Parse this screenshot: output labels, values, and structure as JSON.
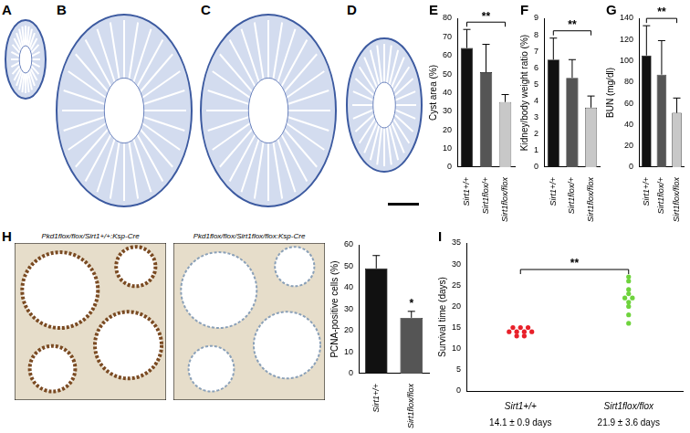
{
  "image_panels": [
    {
      "label": "A"
    },
    {
      "label": "B"
    },
    {
      "label": "C"
    },
    {
      "label": "D"
    },
    {
      "label": "H",
      "captions": [
        "Pkd1flox/flox/Sirt1+/+:Ksp-Cre",
        "Pkd1flox/flox/Sirt1flox/flox:Ksp-Cre"
      ]
    }
  ],
  "chart_data": [
    {
      "type": "bar",
      "panel": "E",
      "y_label": "Cyst area (%)",
      "categories": [
        "Sirt1+/+",
        "Sirt1flox/+",
        "Sirt1flox/flox"
      ],
      "values": [
        64,
        51,
        35
      ],
      "errors": [
        10,
        15,
        4
      ],
      "colors": [
        "#111111",
        "#555555",
        "#c8c8c8"
      ],
      "ylim": [
        0,
        80
      ],
      "yticks": [
        0,
        10,
        20,
        30,
        40,
        50,
        60,
        70,
        80
      ],
      "grid": false,
      "significance": [
        {
          "between": [
            "Sirt1+/+",
            "Sirt1flox/flox"
          ],
          "label": "**"
        }
      ]
    },
    {
      "type": "bar",
      "panel": "F",
      "y_label": "Kidney/body weight ratio (%)",
      "categories": [
        "Sirt1+/+",
        "Sirt1flox/+",
        "Sirt1flox/flox"
      ],
      "values": [
        6.5,
        5.4,
        3.6
      ],
      "errors": [
        1.3,
        1.1,
        0.7
      ],
      "colors": [
        "#111111",
        "#555555",
        "#c8c8c8"
      ],
      "ylim": [
        0,
        9
      ],
      "yticks": [
        0,
        1,
        2,
        3,
        4,
        5,
        6,
        7,
        8,
        9
      ],
      "grid": false,
      "significance": [
        {
          "between": [
            "Sirt1+/+",
            "Sirt1flox/flox"
          ],
          "label": "**"
        }
      ]
    },
    {
      "type": "bar",
      "panel": "G",
      "y_label": "BUN (mg/dl)",
      "categories": [
        "Sirt1+/+",
        "Sirt1flox/+",
        "Sirt1flox/flox"
      ],
      "values": [
        105,
        87,
        51
      ],
      "errors": [
        28,
        32,
        14
      ],
      "colors": [
        "#111111",
        "#555555",
        "#c8c8c8"
      ],
      "ylim": [
        0,
        140
      ],
      "yticks": [
        0,
        20,
        40,
        60,
        80,
        100,
        120,
        140
      ],
      "grid": false,
      "significance": [
        {
          "between": [
            "Sirt1+/+",
            "Sirt1flox/flox"
          ],
          "label": "**"
        }
      ]
    },
    {
      "type": "bar",
      "y_label": "PCNA-positive cells (%)",
      "categories": [
        "Sirt1+/+",
        "Sirt1flox/flox"
      ],
      "values": [
        49,
        26
      ],
      "errors": [
        6,
        3
      ],
      "colors": [
        "#111111",
        "#555555"
      ],
      "ylim": [
        0,
        60
      ],
      "yticks": [
        0,
        10,
        20,
        30,
        40,
        50,
        60
      ],
      "grid": false,
      "stars": [
        {
          "at": "Sirt1flox/flox",
          "label": "*"
        }
      ]
    },
    {
      "type": "scatter",
      "panel": "I",
      "y_label": "Survival time (days)",
      "categories": [
        "Sirt1+/+",
        "Sirt1flox/flox"
      ],
      "values": [
        [
          13,
          13,
          14,
          14,
          14,
          14,
          15,
          15,
          15
        ],
        [
          16,
          18,
          20,
          21,
          22,
          22,
          23,
          24,
          26,
          27
        ]
      ],
      "colors": [
        "#e8202a",
        "#6ed33c"
      ],
      "notes": [
        "14.1 ± 0.9 days",
        "21.9 ± 3.6 days"
      ],
      "ylim": [
        0,
        35
      ],
      "yticks": [
        0,
        5,
        10,
        15,
        20,
        25,
        30,
        35
      ],
      "grid": false,
      "significance": [
        {
          "between": [
            "Sirt1+/+",
            "Sirt1flox/flox"
          ],
          "label": "**"
        }
      ]
    }
  ]
}
